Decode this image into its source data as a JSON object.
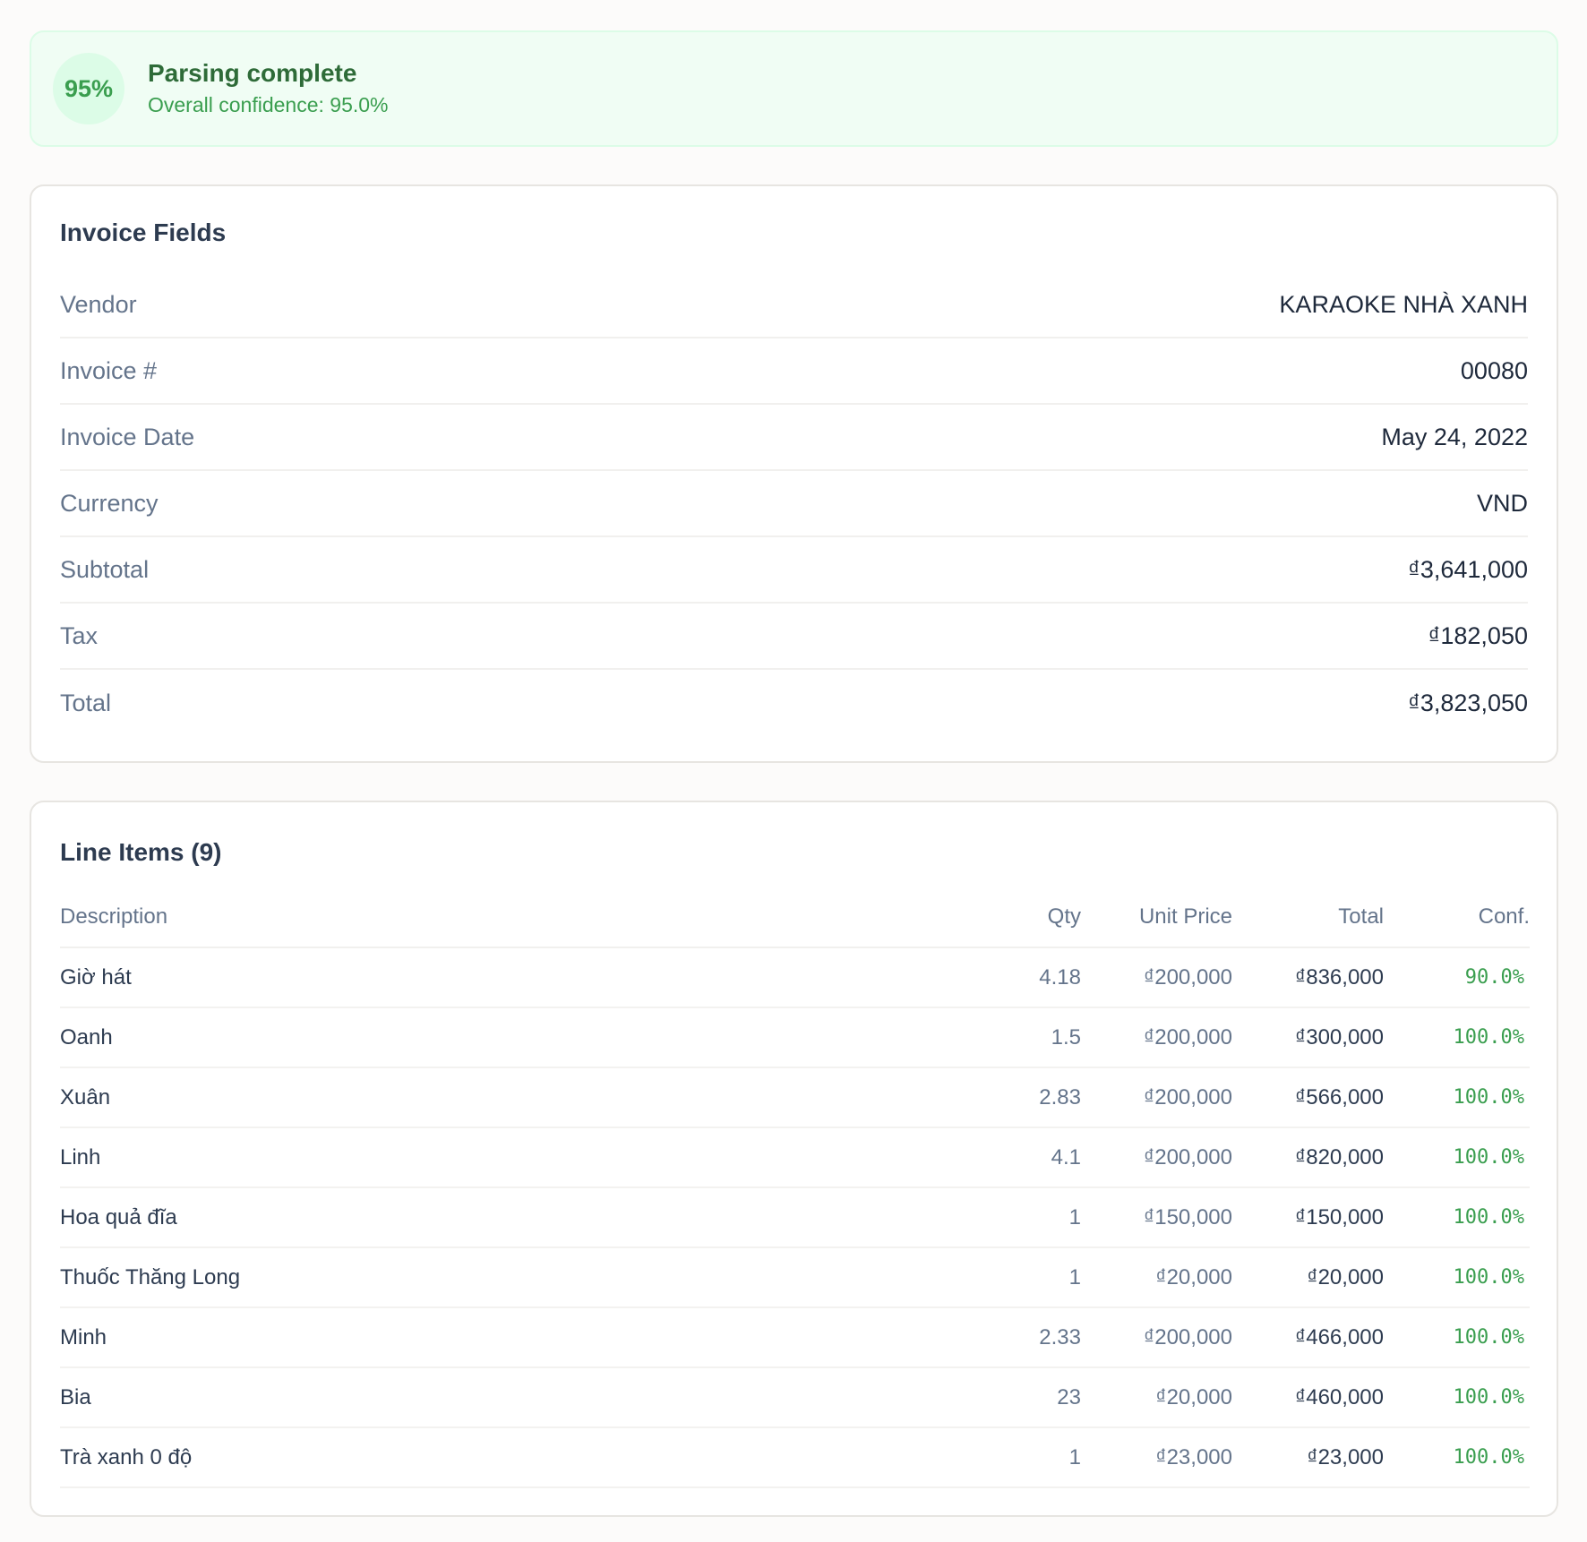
{
  "banner": {
    "score": "95%",
    "title": "Parsing complete",
    "subtitle": "Overall confidence: 95.0%",
    "colors": {
      "bg": "#f0fdf4",
      "accent": "#3a9e4f",
      "title": "#2e6b38"
    }
  },
  "invoice_fields": {
    "title": "Invoice Fields",
    "rows": [
      {
        "label": "Vendor",
        "value": "KARAOKE NHÀ XANH"
      },
      {
        "label": "Invoice #",
        "value": "00080"
      },
      {
        "label": "Invoice Date",
        "value": "May 24, 2022"
      },
      {
        "label": "Currency",
        "value": "VND"
      },
      {
        "label": "Subtotal",
        "value": "₫3,641,000"
      },
      {
        "label": "Tax",
        "value": "₫182,050"
      },
      {
        "label": "Total",
        "value": "₫3,823,050"
      }
    ]
  },
  "line_items": {
    "title": "Line Items (9)",
    "columns": {
      "description": "Description",
      "qty": "Qty",
      "unit_price": "Unit Price",
      "total": "Total",
      "conf": "Conf."
    },
    "rows": [
      {
        "description": "Giờ hát",
        "qty": "4.18",
        "unit_price": "₫200,000",
        "total": "₫836,000",
        "conf": "90.0%"
      },
      {
        "description": "Oanh",
        "qty": "1.5",
        "unit_price": "₫200,000",
        "total": "₫300,000",
        "conf": "100.0%"
      },
      {
        "description": "Xuân",
        "qty": "2.83",
        "unit_price": "₫200,000",
        "total": "₫566,000",
        "conf": "100.0%"
      },
      {
        "description": "Linh",
        "qty": "4.1",
        "unit_price": "₫200,000",
        "total": "₫820,000",
        "conf": "100.0%"
      },
      {
        "description": "Hoa quả đĩa",
        "qty": "1",
        "unit_price": "₫150,000",
        "total": "₫150,000",
        "conf": "100.0%"
      },
      {
        "description": "Thuốc Thăng Long",
        "qty": "1",
        "unit_price": "₫20,000",
        "total": "₫20,000",
        "conf": "100.0%"
      },
      {
        "description": "Minh",
        "qty": "2.33",
        "unit_price": "₫200,000",
        "total": "₫466,000",
        "conf": "100.0%"
      },
      {
        "description": "Bia",
        "qty": "23",
        "unit_price": "₫20,000",
        "total": "₫460,000",
        "conf": "100.0%"
      },
      {
        "description": "Trà xanh 0 độ",
        "qty": "1",
        "unit_price": "₫23,000",
        "total": "₫23,000",
        "conf": "100.0%"
      }
    ]
  }
}
